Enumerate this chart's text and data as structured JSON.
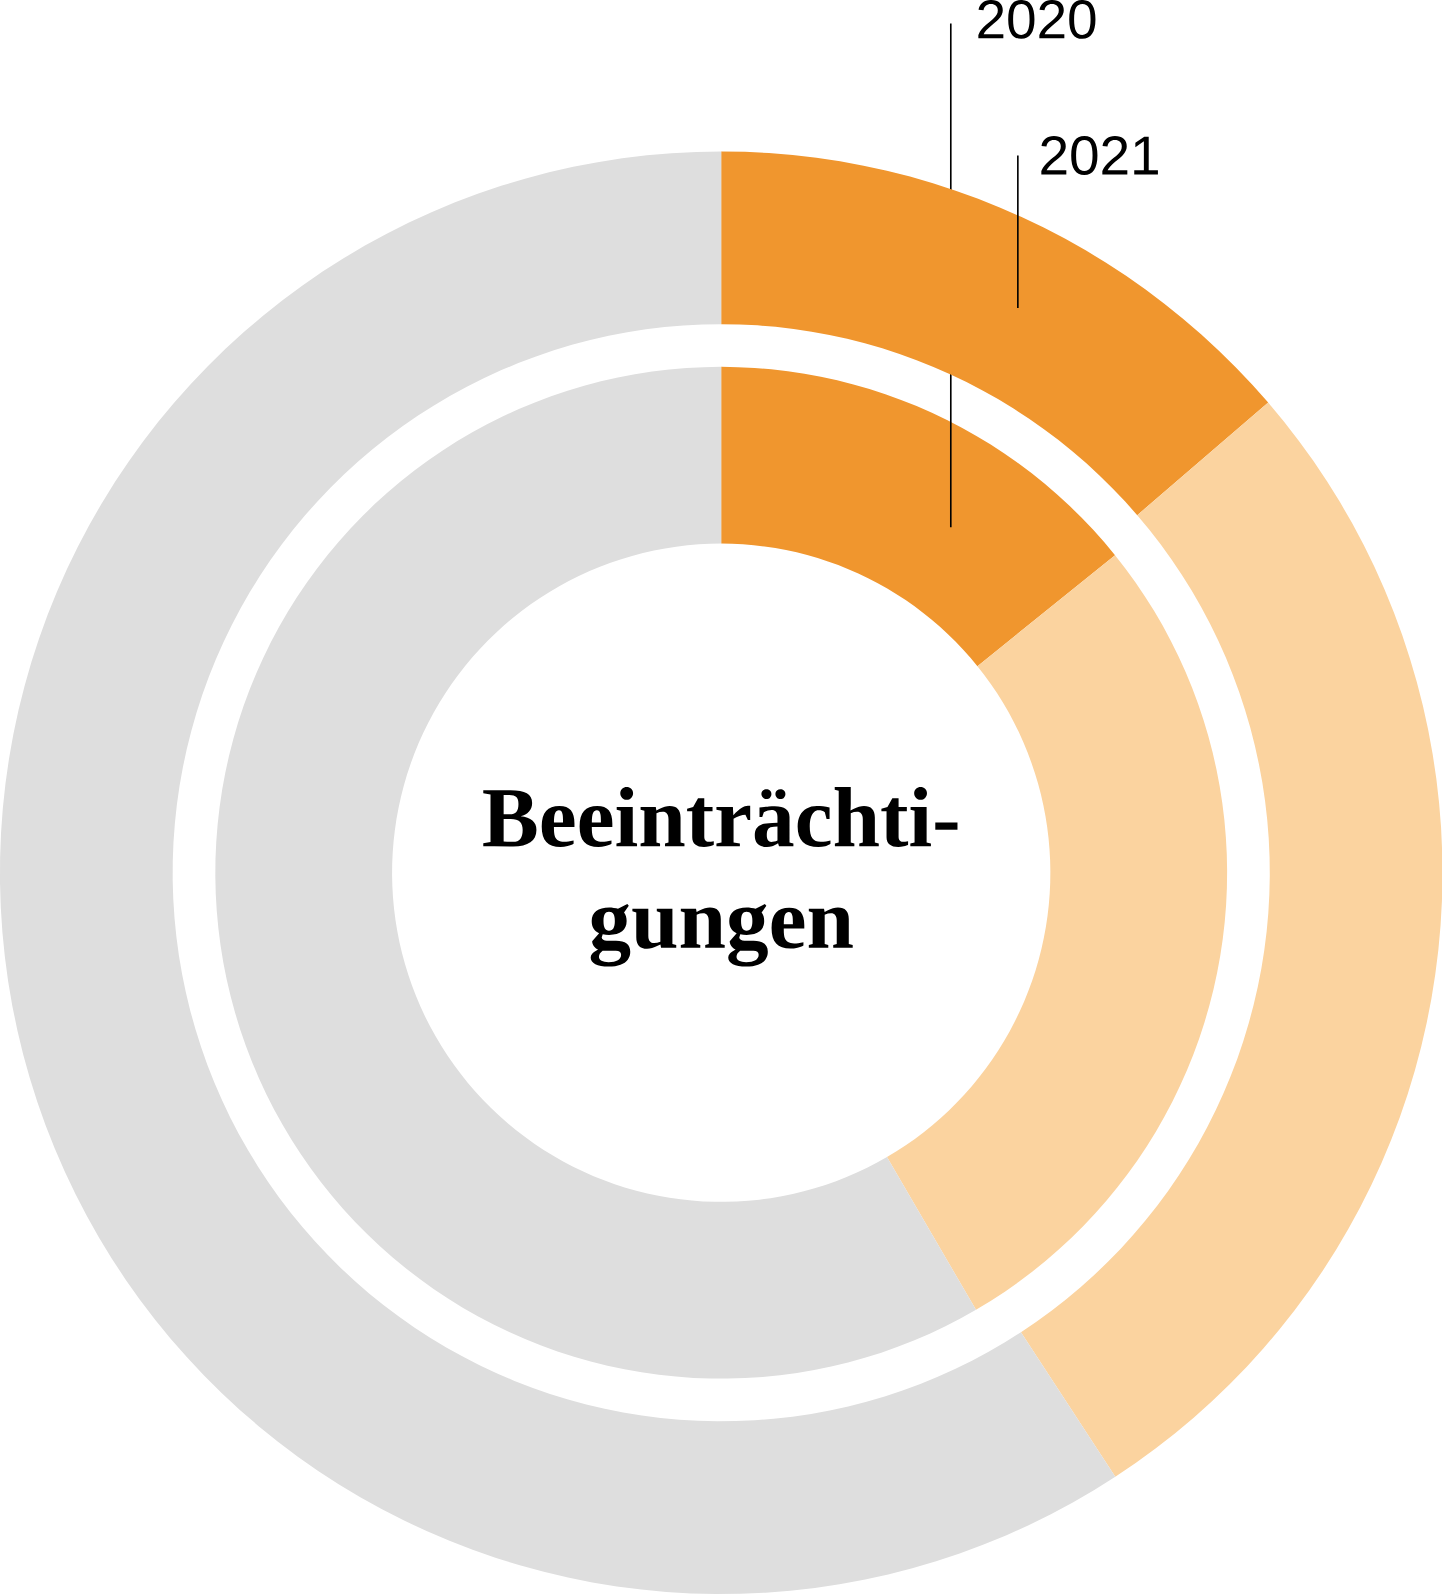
{
  "chart_data": {
    "type": "donut",
    "title": "Beeinträchti-gungen",
    "categories": [
      null,
      null,
      null
    ],
    "series": [
      {
        "name": "2020",
        "values": [
          14.2,
          27.4,
          58.4
        ],
        "colors": [
          "#f0962e",
          "#fbd39f",
          "#dedede"
        ]
      },
      {
        "name": "2021",
        "values": [
          13.7,
          27.1,
          59.2
        ],
        "colors": [
          "#f0962e",
          "#fbd39f",
          "#dedede"
        ]
      }
    ]
  }
}
